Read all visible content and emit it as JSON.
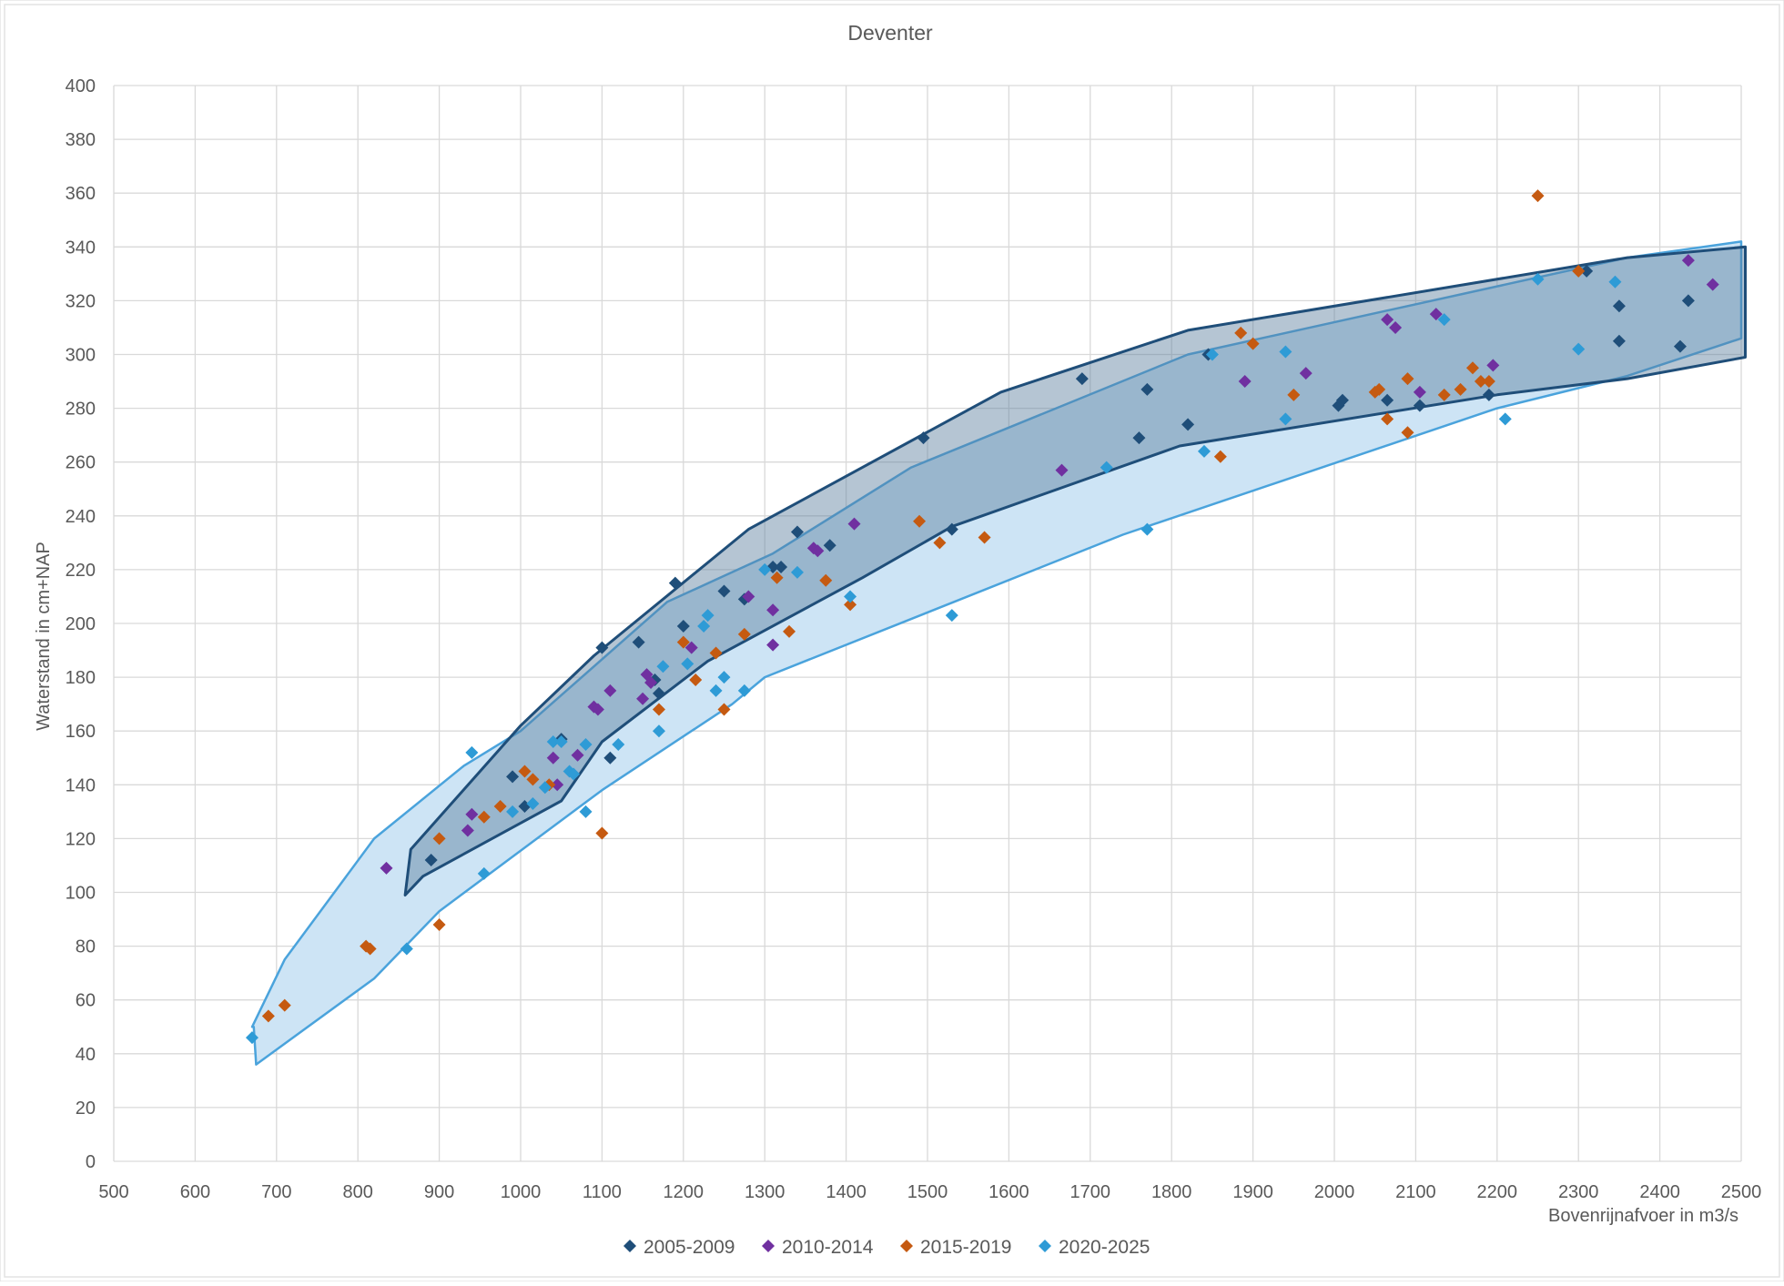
{
  "chart_data": {
    "type": "scatter",
    "title": "Deventer",
    "xlabel": "Bovenrijnafvoer in m3/s",
    "ylabel": "Waterstand in cm+NAP",
    "xlim": [
      500,
      2500
    ],
    "ylim": [
      0,
      400
    ],
    "xticks": [
      500,
      600,
      700,
      800,
      900,
      1000,
      1100,
      1200,
      1300,
      1400,
      1500,
      1600,
      1700,
      1800,
      1900,
      2000,
      2100,
      2200,
      2300,
      2400,
      2500
    ],
    "yticks": [
      0,
      20,
      40,
      60,
      80,
      100,
      120,
      140,
      160,
      180,
      200,
      220,
      240,
      260,
      280,
      300,
      320,
      340,
      360,
      380,
      400
    ],
    "grid": true,
    "legend_position": "bottom",
    "series": [
      {
        "name": "2005-2009",
        "color": "#1f4e79",
        "points": [
          [
            890,
            112
          ],
          [
            990,
            143
          ],
          [
            1005,
            132
          ],
          [
            1050,
            157
          ],
          [
            1100,
            191
          ],
          [
            1110,
            150
          ],
          [
            1145,
            193
          ],
          [
            1165,
            179
          ],
          [
            1170,
            174
          ],
          [
            1190,
            215
          ],
          [
            1200,
            199
          ],
          [
            1250,
            212
          ],
          [
            1275,
            209
          ],
          [
            1310,
            221
          ],
          [
            1320,
            221
          ],
          [
            1340,
            234
          ],
          [
            1380,
            229
          ],
          [
            1495,
            269
          ],
          [
            1530,
            235
          ],
          [
            1690,
            291
          ],
          [
            1760,
            269
          ],
          [
            1770,
            287
          ],
          [
            1820,
            274
          ],
          [
            1845,
            300
          ],
          [
            2005,
            281
          ],
          [
            2010,
            283
          ],
          [
            2065,
            283
          ],
          [
            2105,
            281
          ],
          [
            2190,
            285
          ],
          [
            2350,
            318
          ],
          [
            2350,
            305
          ],
          [
            2425,
            303
          ],
          [
            2435,
            320
          ],
          [
            2310,
            331
          ]
        ]
      },
      {
        "name": "2010-2014",
        "color": "#7030a0",
        "points": [
          [
            835,
            109
          ],
          [
            935,
            123
          ],
          [
            940,
            129
          ],
          [
            1040,
            150
          ],
          [
            1045,
            140
          ],
          [
            1070,
            151
          ],
          [
            1090,
            169
          ],
          [
            1095,
            168
          ],
          [
            1110,
            175
          ],
          [
            1150,
            172
          ],
          [
            1155,
            181
          ],
          [
            1160,
            178
          ],
          [
            1210,
            191
          ],
          [
            1280,
            210
          ],
          [
            1310,
            192
          ],
          [
            1310,
            205
          ],
          [
            1360,
            228
          ],
          [
            1365,
            227
          ],
          [
            1410,
            237
          ],
          [
            1665,
            257
          ],
          [
            1890,
            290
          ],
          [
            1965,
            293
          ],
          [
            2065,
            313
          ],
          [
            2075,
            310
          ],
          [
            2105,
            286
          ],
          [
            2125,
            315
          ],
          [
            2195,
            296
          ],
          [
            2435,
            335
          ],
          [
            2465,
            326
          ]
        ]
      },
      {
        "name": "2015-2019",
        "color": "#c55a11",
        "points": [
          [
            690,
            54
          ],
          [
            710,
            58
          ],
          [
            810,
            80
          ],
          [
            815,
            79
          ],
          [
            900,
            120
          ],
          [
            900,
            88
          ],
          [
            955,
            128
          ],
          [
            975,
            132
          ],
          [
            1005,
            145
          ],
          [
            1015,
            142
          ],
          [
            1035,
            140
          ],
          [
            1100,
            122
          ],
          [
            1170,
            168
          ],
          [
            1200,
            193
          ],
          [
            1215,
            179
          ],
          [
            1240,
            189
          ],
          [
            1250,
            168
          ],
          [
            1275,
            196
          ],
          [
            1315,
            217
          ],
          [
            1330,
            197
          ],
          [
            1375,
            216
          ],
          [
            1405,
            207
          ],
          [
            1490,
            238
          ],
          [
            1515,
            230
          ],
          [
            1570,
            232
          ],
          [
            1860,
            262
          ],
          [
            1885,
            308
          ],
          [
            1900,
            304
          ],
          [
            1950,
            285
          ],
          [
            2050,
            286
          ],
          [
            2055,
            287
          ],
          [
            2065,
            276
          ],
          [
            2090,
            271
          ],
          [
            2090,
            291
          ],
          [
            2135,
            285
          ],
          [
            2155,
            287
          ],
          [
            2170,
            295
          ],
          [
            2180,
            290
          ],
          [
            2190,
            290
          ],
          [
            2250,
            359
          ],
          [
            2300,
            331
          ]
        ]
      },
      {
        "name": "2020-2025",
        "color": "#2e9bd6",
        "points": [
          [
            670,
            46
          ],
          [
            860,
            79
          ],
          [
            940,
            152
          ],
          [
            955,
            107
          ],
          [
            990,
            130
          ],
          [
            1015,
            133
          ],
          [
            1030,
            139
          ],
          [
            1040,
            156
          ],
          [
            1050,
            156
          ],
          [
            1060,
            145
          ],
          [
            1065,
            144
          ],
          [
            1080,
            155
          ],
          [
            1080,
            130
          ],
          [
            1120,
            155
          ],
          [
            1175,
            184
          ],
          [
            1170,
            160
          ],
          [
            1205,
            185
          ],
          [
            1225,
            199
          ],
          [
            1230,
            203
          ],
          [
            1240,
            175
          ],
          [
            1250,
            180
          ],
          [
            1275,
            175
          ],
          [
            1300,
            220
          ],
          [
            1340,
            219
          ],
          [
            1405,
            210
          ],
          [
            1530,
            203
          ],
          [
            1720,
            258
          ],
          [
            1770,
            235
          ],
          [
            1840,
            264
          ],
          [
            1850,
            300
          ],
          [
            1940,
            276
          ],
          [
            1940,
            301
          ],
          [
            2135,
            313
          ],
          [
            2210,
            276
          ],
          [
            2250,
            328
          ],
          [
            2300,
            302
          ],
          [
            2345,
            327
          ]
        ]
      }
    ],
    "envelopes": [
      {
        "name": "envelope 2020-2025",
        "fill": "#cde4f5",
        "stroke": "#4aa3dc",
        "points": [
          [
            670,
            50
          ],
          [
            710,
            75
          ],
          [
            820,
            120
          ],
          [
            930,
            147
          ],
          [
            1000,
            160
          ],
          [
            1180,
            208
          ],
          [
            1310,
            226
          ],
          [
            1480,
            258
          ],
          [
            1820,
            300
          ],
          [
            2360,
            336
          ],
          [
            2500,
            342
          ],
          [
            2500,
            306
          ],
          [
            2360,
            292
          ],
          [
            2200,
            280
          ],
          [
            1740,
            233
          ],
          [
            1300,
            180
          ],
          [
            1260,
            170
          ],
          [
            1100,
            138
          ],
          [
            900,
            93
          ],
          [
            820,
            68
          ],
          [
            675,
            36
          ],
          [
            672,
            50
          ]
        ]
      },
      {
        "name": "envelope 2005-2009",
        "fill": "#5b7f9d",
        "fill_opacity": 0.45,
        "stroke": "#1f4e79",
        "points": [
          [
            865,
            116
          ],
          [
            1000,
            162
          ],
          [
            1090,
            188
          ],
          [
            1280,
            235
          ],
          [
            1590,
            286
          ],
          [
            1820,
            309
          ],
          [
            2360,
            336
          ],
          [
            2505,
            340
          ],
          [
            2505,
            299
          ],
          [
            2360,
            291
          ],
          [
            2200,
            285
          ],
          [
            1810,
            266
          ],
          [
            1530,
            236
          ],
          [
            1420,
            217
          ],
          [
            1230,
            186
          ],
          [
            1100,
            156
          ],
          [
            1050,
            134
          ],
          [
            880,
            106
          ],
          [
            858,
            99
          ]
        ]
      }
    ]
  }
}
